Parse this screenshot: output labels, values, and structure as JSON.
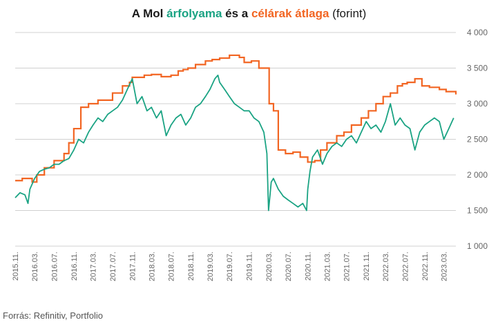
{
  "title": {
    "part1": "A Mol ",
    "part2": "árfolyama",
    "part3": " és a ",
    "part4": "célárak átlaga",
    "part5": " (forint)"
  },
  "source": "Forrás: Refinitiv, Portfolio",
  "colors": {
    "price": "#1aa383",
    "target": "#f26522",
    "grid": "#d0d0d0",
    "text": "#666666"
  },
  "chart_data": {
    "type": "line",
    "title": "A Mol árfolyama és a célárak átlaga (forint)",
    "ylim": [
      1000,
      4000
    ],
    "yticks": [
      1000,
      1500,
      2000,
      2500,
      3000,
      3500,
      4000
    ],
    "ytick_labels": [
      "1 000",
      "1 500",
      "2 000",
      "2 500",
      "3 000",
      "3 500",
      "4 000"
    ],
    "xlim": [
      "2015-11-01",
      "2023-05-15"
    ],
    "xticks": [
      "2015.11.",
      "2016.03.",
      "2016.07.",
      "2016.11.",
      "2017.03.",
      "2017.07.",
      "2017.11.",
      "2018.03.",
      "2018.07.",
      "2018.11.",
      "2019.03.",
      "2019.07.",
      "2019.11.",
      "2020.03.",
      "2020.07.",
      "2020.11.",
      "2021.03.",
      "2021.07.",
      "2021.11.",
      "2022.03.",
      "2022.07.",
      "2022.11.",
      "2023.03."
    ],
    "grid": true,
    "series": [
      {
        "name": "árfolyama",
        "style": "line",
        "x": [
          "2015-11-01",
          "2015-12-01",
          "2016-01-01",
          "2016-01-20",
          "2016-02-01",
          "2016-03-01",
          "2016-04-01",
          "2016-05-01",
          "2016-06-01",
          "2016-07-01",
          "2016-08-01",
          "2016-09-01",
          "2016-10-01",
          "2016-11-01",
          "2016-12-01",
          "2017-01-01",
          "2017-02-01",
          "2017-03-01",
          "2017-04-01",
          "2017-05-01",
          "2017-06-01",
          "2017-07-01",
          "2017-08-01",
          "2017-09-01",
          "2017-10-01",
          "2017-11-01",
          "2017-12-01",
          "2018-01-01",
          "2018-02-01",
          "2018-03-01",
          "2018-04-01",
          "2018-05-01",
          "2018-06-01",
          "2018-07-01",
          "2018-08-01",
          "2018-09-01",
          "2018-10-01",
          "2018-11-01",
          "2018-12-01",
          "2019-01-01",
          "2019-02-01",
          "2019-03-01",
          "2019-04-01",
          "2019-04-20",
          "2019-05-01",
          "2019-06-01",
          "2019-07-01",
          "2019-08-01",
          "2019-09-01",
          "2019-10-01",
          "2019-11-01",
          "2019-12-01",
          "2020-01-01",
          "2020-02-01",
          "2020-02-20",
          "2020-03-01",
          "2020-03-18",
          "2020-04-01",
          "2020-05-01",
          "2020-06-01",
          "2020-07-01",
          "2020-08-01",
          "2020-09-01",
          "2020-10-01",
          "2020-10-25",
          "2020-11-01",
          "2020-11-15",
          "2020-12-01",
          "2021-01-01",
          "2021-02-01",
          "2021-03-01",
          "2021-04-01",
          "2021-05-01",
          "2021-06-01",
          "2021-07-01",
          "2021-08-01",
          "2021-09-01",
          "2021-10-01",
          "2021-11-01",
          "2021-12-01",
          "2022-01-01",
          "2022-02-01",
          "2022-03-01",
          "2022-04-01",
          "2022-05-01",
          "2022-06-01",
          "2022-07-01",
          "2022-08-01",
          "2022-09-01",
          "2022-10-01",
          "2022-11-01",
          "2022-12-01",
          "2023-01-01",
          "2023-02-01",
          "2023-03-01",
          "2023-04-01",
          "2023-05-01"
        ],
        "y": [
          1680,
          1750,
          1720,
          1600,
          1800,
          1950,
          2050,
          2080,
          2100,
          2150,
          2150,
          2200,
          2230,
          2350,
          2500,
          2450,
          2600,
          2700,
          2800,
          2750,
          2850,
          2900,
          2950,
          3050,
          3200,
          3350,
          3000,
          3100,
          2900,
          2950,
          2800,
          2900,
          2550,
          2700,
          2800,
          2850,
          2700,
          2800,
          2950,
          3000,
          3100,
          3200,
          3350,
          3400,
          3300,
          3200,
          3100,
          3000,
          2950,
          2900,
          2900,
          2800,
          2750,
          2600,
          2300,
          1500,
          1900,
          1950,
          1800,
          1700,
          1650,
          1600,
          1550,
          1600,
          1500,
          1800,
          2050,
          2250,
          2350,
          2150,
          2300,
          2400,
          2450,
          2400,
          2500,
          2550,
          2450,
          2600,
          2750,
          2650,
          2700,
          2600,
          2750,
          3000,
          2700,
          2800,
          2700,
          2650,
          2350,
          2600,
          2700,
          2750,
          2800,
          2750,
          2500,
          2650,
          2800
        ]
      },
      {
        "name": "célárak átlaga",
        "style": "step",
        "x": [
          "2015-11-01",
          "2015-12-15",
          "2016-02-15",
          "2016-03-15",
          "2016-05-01",
          "2016-07-01",
          "2016-09-01",
          "2016-10-01",
          "2016-11-01",
          "2016-12-15",
          "2017-02-01",
          "2017-04-01",
          "2017-07-01",
          "2017-09-01",
          "2017-10-15",
          "2017-11-01",
          "2018-01-15",
          "2018-03-01",
          "2018-05-01",
          "2018-07-01",
          "2018-08-15",
          "2018-09-15",
          "2018-10-15",
          "2018-12-01",
          "2019-02-01",
          "2019-03-15",
          "2019-05-01",
          "2019-07-01",
          "2019-09-01",
          "2019-10-01",
          "2019-11-15",
          "2020-01-01",
          "2020-03-05",
          "2020-04-01",
          "2020-05-01",
          "2020-06-15",
          "2020-08-01",
          "2020-09-15",
          "2020-11-01",
          "2020-12-15",
          "2021-01-20",
          "2021-03-01",
          "2021-05-01",
          "2021-06-15",
          "2021-08-01",
          "2021-10-01",
          "2021-11-15",
          "2022-01-01",
          "2022-02-15",
          "2022-04-01",
          "2022-05-15",
          "2022-06-15",
          "2022-07-15",
          "2022-09-01",
          "2022-10-15",
          "2022-12-01",
          "2023-02-01",
          "2023-03-15",
          "2023-05-15"
        ],
        "y": [
          1920,
          1950,
          1900,
          2000,
          2100,
          2200,
          2300,
          2450,
          2650,
          2950,
          3000,
          3050,
          3150,
          3250,
          3300,
          3370,
          3400,
          3410,
          3380,
          3400,
          3460,
          3480,
          3500,
          3550,
          3600,
          3620,
          3640,
          3680,
          3650,
          3580,
          3600,
          3500,
          3000,
          2900,
          2350,
          2300,
          2320,
          2250,
          2180,
          2200,
          2350,
          2450,
          2550,
          2600,
          2700,
          2800,
          2900,
          3000,
          3100,
          3150,
          3250,
          3280,
          3300,
          3350,
          3250,
          3230,
          3200,
          3170,
          3130
        ]
      }
    ]
  }
}
